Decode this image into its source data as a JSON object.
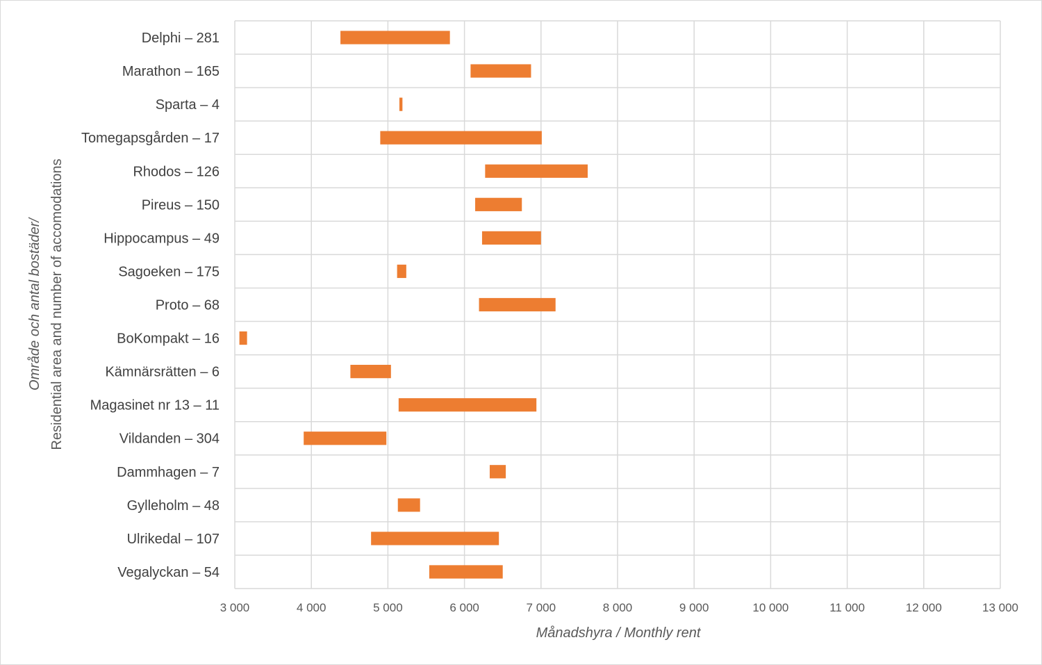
{
  "chart_data": {
    "type": "bar",
    "orientation": "horizontal",
    "style": "floating range bars",
    "xlabel": "Månadshyra / Monthly rent",
    "ylabel_line1": "Område och antal bostäder/",
    "ylabel_line2": "Residential area and number of accomodations",
    "xlim": [
      3000,
      13000
    ],
    "xticks": [
      3000,
      4000,
      5000,
      6000,
      7000,
      8000,
      9000,
      10000,
      11000,
      12000,
      13000
    ],
    "xtick_labels": [
      "3 000",
      "4 000",
      "5 000",
      "6 000",
      "7 000",
      "8 000",
      "9 000",
      "10 000",
      "11 000",
      "12 000",
      "13 000"
    ],
    "grid": true,
    "bar_color": "#ED7D31",
    "categories": [
      "Delphi – 281",
      "Marathon – 165",
      "Sparta – 4",
      "Tomegapsgården – 17",
      "Rhodos – 126",
      "Pireus – 150",
      "Hippocampus – 49",
      "Sagoeken – 175",
      "Proto – 68",
      "BoKompakt – 16",
      "Kämnärsrätten – 6",
      "Magasinet nr 13 – 11",
      "Vildanden – 304",
      "Dammhagen – 7",
      "Gylleholm – 48",
      "Ulrikedal – 107",
      "Vegalyckan – 54"
    ],
    "series": [
      {
        "min": [
          4380,
          6080,
          5150,
          4900,
          6270,
          6140,
          6230,
          5120,
          6190,
          3060,
          4510,
          5140,
          3900,
          6330,
          5130,
          4780,
          5540
        ],
        "max": [
          5810,
          6870,
          5190,
          7010,
          7610,
          6750,
          7000,
          5240,
          7190,
          3160,
          5040,
          6940,
          4980,
          6540,
          5420,
          6450,
          6500
        ]
      }
    ]
  }
}
